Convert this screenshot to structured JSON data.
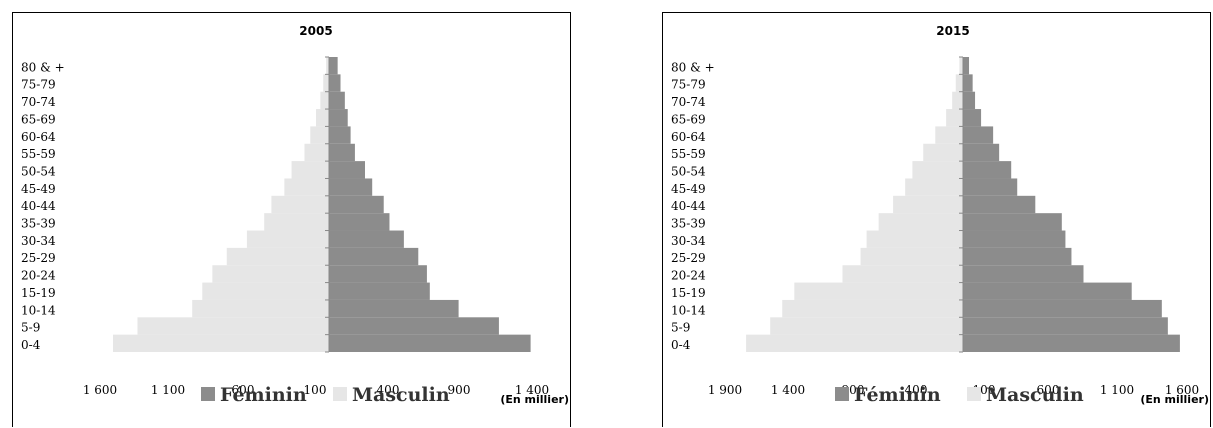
{
  "chart_data": [
    {
      "type": "bar",
      "title": "2005",
      "categories": [
        "0-4",
        "5-9",
        "10-14",
        "15-19",
        "20-24",
        "25-29",
        "30-34",
        "35-39",
        "40-44",
        "45-49",
        "50-54",
        "55-59",
        "60-64",
        "65-69",
        "70-74",
        "75-79",
        "80 & +"
      ],
      "series": [
        {
          "name": "Féminin",
          "color": "#8c8c8c",
          "values": [
            1400,
            1180,
            900,
            700,
            680,
            620,
            520,
            420,
            380,
            300,
            250,
            180,
            150,
            130,
            110,
            80,
            60
          ]
        },
        {
          "name": "Masculin",
          "color": "#e6e6e6",
          "values": [
            1500,
            1330,
            950,
            880,
            810,
            710,
            570,
            450,
            400,
            310,
            260,
            170,
            130,
            90,
            60,
            40,
            20
          ]
        }
      ],
      "x_ticks": [
        "1 600",
        "1 100",
        "600",
        "100",
        "400",
        "900",
        "1 400"
      ],
      "unit": "(En millier)"
    },
    {
      "type": "bar",
      "title": "2015",
      "categories": [
        "0-4",
        "5-9",
        "10-14",
        "15-19",
        "20-24",
        "25-29",
        "30-34",
        "35-39",
        "40-44",
        "45-49",
        "50-54",
        "55-59",
        "60-64",
        "65-69",
        "70-74",
        "75-79",
        "80 & +"
      ],
      "series": [
        {
          "name": "Féminin",
          "color": "#8c8c8c",
          "values": [
            1800,
            1700,
            1650,
            1400,
            1000,
            900,
            850,
            820,
            600,
            450,
            400,
            300,
            250,
            150,
            100,
            80,
            50
          ]
        },
        {
          "name": "Masculin",
          "color": "#e6e6e6",
          "values": [
            1800,
            1600,
            1500,
            1400,
            1000,
            850,
            800,
            700,
            580,
            480,
            420,
            330,
            230,
            140,
            90,
            60,
            30
          ]
        }
      ],
      "x_ticks": [
        "1 900",
        "1 400",
        "900",
        "400",
        "100",
        "600",
        "1 100",
        "1 600"
      ],
      "unit": "(En millier)"
    }
  ]
}
